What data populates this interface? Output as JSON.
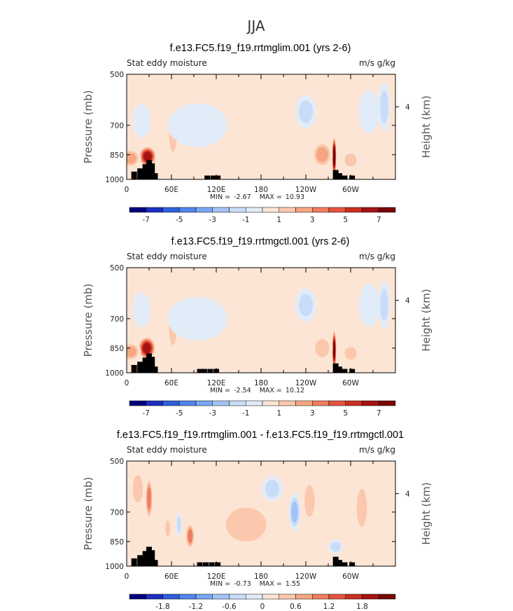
{
  "figure": {
    "main_title": "JJA"
  },
  "chart_data": [
    {
      "type": "heatmap",
      "title": "f.e13.FC5.f19_f19.rrtmglim.001 (yrs 2-6)",
      "left_label": "Stat eddy moisture",
      "right_label": "m/s  g/kg",
      "ylabel": "Pressure (mb)",
      "y2label": "Height (km)",
      "y_ticks": [
        "500",
        "700",
        "850",
        "1000"
      ],
      "y2_ticks": [
        "4"
      ],
      "x_ticks": [
        "0",
        "60E",
        "120E",
        "180",
        "120W",
        "60W"
      ],
      "min_label": "MIN =",
      "min_value": "-2.67",
      "max_label": "MAX =",
      "max_value": "10.93",
      "colorbar_ticks": [
        "-7",
        "-5",
        "-3",
        "-1",
        "1",
        "3",
        "5",
        "7"
      ],
      "colorbar_levels": [
        -8,
        8
      ],
      "blobs": [
        {
          "lon": 28,
          "p": 860,
          "lon_w": 12,
          "p_w": 120,
          "level": 6.5
        },
        {
          "lon": 5,
          "p": 870,
          "lon_w": 14,
          "p_w": 110,
          "level": 2.5
        },
        {
          "lon": 62,
          "p": 740,
          "lon_w": 8,
          "p_w": 260,
          "level": 1.2
        },
        {
          "lon": 45,
          "p": 620,
          "lon_w": 6,
          "p_w": 160,
          "level": 0.8
        },
        {
          "lon": 278,
          "p": 860,
          "lon_w": 3,
          "p_w": 230,
          "level": 8.5
        },
        {
          "lon": 262,
          "p": 850,
          "lon_w": 14,
          "p_w": 150,
          "level": 2.3
        },
        {
          "lon": 300,
          "p": 880,
          "lon_w": 12,
          "p_w": 110,
          "level": 1.3
        },
        {
          "lon": 175,
          "p": 760,
          "lon_w": 60,
          "p_w": 220,
          "level": 0.6
        },
        {
          "lon": 240,
          "p": 640,
          "lon_w": 14,
          "p_w": 140,
          "level": -1.6
        },
        {
          "lon": 345,
          "p": 620,
          "lon_w": 8,
          "p_w": 200,
          "level": -1.8
        },
        {
          "lon": 95,
          "p": 700,
          "lon_w": 40,
          "p_w": 200,
          "level": -0.7
        },
        {
          "lon": 20,
          "p": 680,
          "lon_w": 12,
          "p_w": 150,
          "level": -0.7
        },
        {
          "lon": 325,
          "p": 640,
          "lon_w": 14,
          "p_w": 180,
          "level": -0.8
        },
        {
          "lon": 200,
          "p": 900,
          "lon_w": 30,
          "p_w": 120,
          "level": 0.7
        }
      ],
      "topography": [
        [
          10,
          950
        ],
        [
          18,
          930
        ],
        [
          25,
          905
        ],
        [
          30,
          880
        ],
        [
          34,
          900
        ],
        [
          38,
          960
        ],
        [
          108,
          975
        ],
        [
          116,
          975
        ],
        [
          122,
          975
        ],
        [
          280,
          940
        ],
        [
          285,
          960
        ],
        [
          292,
          975
        ],
        [
          302,
          975
        ]
      ]
    },
    {
      "type": "heatmap",
      "title": "f.e13.FC5.f19_f19.rrtmgctl.001 (yrs 2-6)",
      "left_label": "Stat eddy moisture",
      "right_label": "m/s  g/kg",
      "ylabel": "Pressure (mb)",
      "y2label": "Height (km)",
      "y_ticks": [
        "500",
        "700",
        "850",
        "1000"
      ],
      "y2_ticks": [
        "4"
      ],
      "x_ticks": [
        "0",
        "60E",
        "120E",
        "180",
        "120W",
        "60W"
      ],
      "min_label": "MIN =",
      "min_value": "-2.54",
      "max_label": "MAX =",
      "max_value": "10.12",
      "colorbar_ticks": [
        "-7",
        "-5",
        "-3",
        "-1",
        "1",
        "3",
        "5",
        "7"
      ],
      "colorbar_levels": [
        -8,
        8
      ],
      "blobs": [
        {
          "lon": 27,
          "p": 850,
          "lon_w": 12,
          "p_w": 130,
          "level": 6.2
        },
        {
          "lon": 5,
          "p": 870,
          "lon_w": 14,
          "p_w": 110,
          "level": 2.2
        },
        {
          "lon": 62,
          "p": 740,
          "lon_w": 8,
          "p_w": 260,
          "level": 1.1
        },
        {
          "lon": 45,
          "p": 620,
          "lon_w": 6,
          "p_w": 160,
          "level": 0.8
        },
        {
          "lon": 278,
          "p": 860,
          "lon_w": 3,
          "p_w": 230,
          "level": 8.0
        },
        {
          "lon": 262,
          "p": 850,
          "lon_w": 14,
          "p_w": 150,
          "level": 2.0
        },
        {
          "lon": 300,
          "p": 880,
          "lon_w": 12,
          "p_w": 110,
          "level": 1.2
        },
        {
          "lon": 175,
          "p": 760,
          "lon_w": 60,
          "p_w": 220,
          "level": 0.6
        },
        {
          "lon": 240,
          "p": 640,
          "lon_w": 14,
          "p_w": 140,
          "level": -1.5
        },
        {
          "lon": 345,
          "p": 640,
          "lon_w": 8,
          "p_w": 200,
          "level": -1.7
        },
        {
          "lon": 95,
          "p": 700,
          "lon_w": 40,
          "p_w": 200,
          "level": -0.7
        },
        {
          "lon": 20,
          "p": 660,
          "lon_w": 12,
          "p_w": 150,
          "level": -0.8
        },
        {
          "lon": 325,
          "p": 640,
          "lon_w": 14,
          "p_w": 180,
          "level": -0.8
        },
        {
          "lon": 200,
          "p": 900,
          "lon_w": 30,
          "p_w": 120,
          "level": 0.7
        }
      ],
      "topography": [
        [
          10,
          950
        ],
        [
          18,
          930
        ],
        [
          25,
          905
        ],
        [
          30,
          880
        ],
        [
          34,
          900
        ],
        [
          38,
          960
        ],
        [
          98,
          975
        ],
        [
          104,
          975
        ],
        [
          112,
          975
        ],
        [
          120,
          975
        ],
        [
          280,
          940
        ],
        [
          285,
          960
        ],
        [
          292,
          975
        ],
        [
          302,
          975
        ]
      ]
    },
    {
      "type": "heatmap",
      "title": "f.e13.FC5.f19_f19.rrtmglim.001 - f.e13.FC5.f19_f19.rrtmgctl.001",
      "left_label": "Stat eddy moisture",
      "right_label": "m/s  g/kg",
      "ylabel": "Pressure (mb)",
      "y2label": "Height (km)",
      "y_ticks": [
        "500",
        "700",
        "850",
        "1000"
      ],
      "y2_ticks": [
        "4"
      ],
      "x_ticks": [
        "0",
        "60E",
        "120E",
        "180",
        "120W",
        "60W"
      ],
      "min_label": "MIN =",
      "min_value": "-0.73",
      "max_label": "MAX =",
      "max_value": "1.55",
      "colorbar_ticks": [
        "-1.8",
        "-1.2",
        "-0.6",
        "0",
        "0.6",
        "1.2",
        "1.8"
      ],
      "colorbar_levels": [
        -2.1,
        2.1
      ],
      "blobs": [
        {
          "lon": 30,
          "p": 640,
          "lon_w": 5,
          "p_w": 180,
          "level": 0.9
        },
        {
          "lon": 15,
          "p": 600,
          "lon_w": 10,
          "p_w": 160,
          "level": 0.4
        },
        {
          "lon": 85,
          "p": 820,
          "lon_w": 6,
          "p_w": 140,
          "level": 0.8
        },
        {
          "lon": 55,
          "p": 780,
          "lon_w": 5,
          "p_w": 120,
          "level": 0.5
        },
        {
          "lon": 70,
          "p": 760,
          "lon_w": 4,
          "p_w": 120,
          "level": -0.35
        },
        {
          "lon": 225,
          "p": 700,
          "lon_w": 8,
          "p_w": 170,
          "level": -0.65
        },
        {
          "lon": 245,
          "p": 650,
          "lon_w": 10,
          "p_w": 200,
          "level": 0.35
        },
        {
          "lon": 160,
          "p": 760,
          "lon_w": 40,
          "p_w": 250,
          "level": 0.3
        },
        {
          "lon": 315,
          "p": 680,
          "lon_w": 10,
          "p_w": 250,
          "level": 0.3
        },
        {
          "lon": 195,
          "p": 600,
          "lon_w": 14,
          "p_w": 100,
          "level": -0.35
        },
        {
          "lon": 280,
          "p": 880,
          "lon_w": 10,
          "p_w": 80,
          "level": -0.3
        }
      ],
      "topography": [
        [
          10,
          950
        ],
        [
          18,
          930
        ],
        [
          25,
          905
        ],
        [
          30,
          880
        ],
        [
          34,
          900
        ],
        [
          38,
          960
        ],
        [
          98,
          975
        ],
        [
          106,
          975
        ],
        [
          114,
          975
        ],
        [
          122,
          975
        ],
        [
          280,
          940
        ],
        [
          285,
          960
        ],
        [
          292,
          975
        ],
        [
          302,
          975
        ]
      ]
    }
  ]
}
